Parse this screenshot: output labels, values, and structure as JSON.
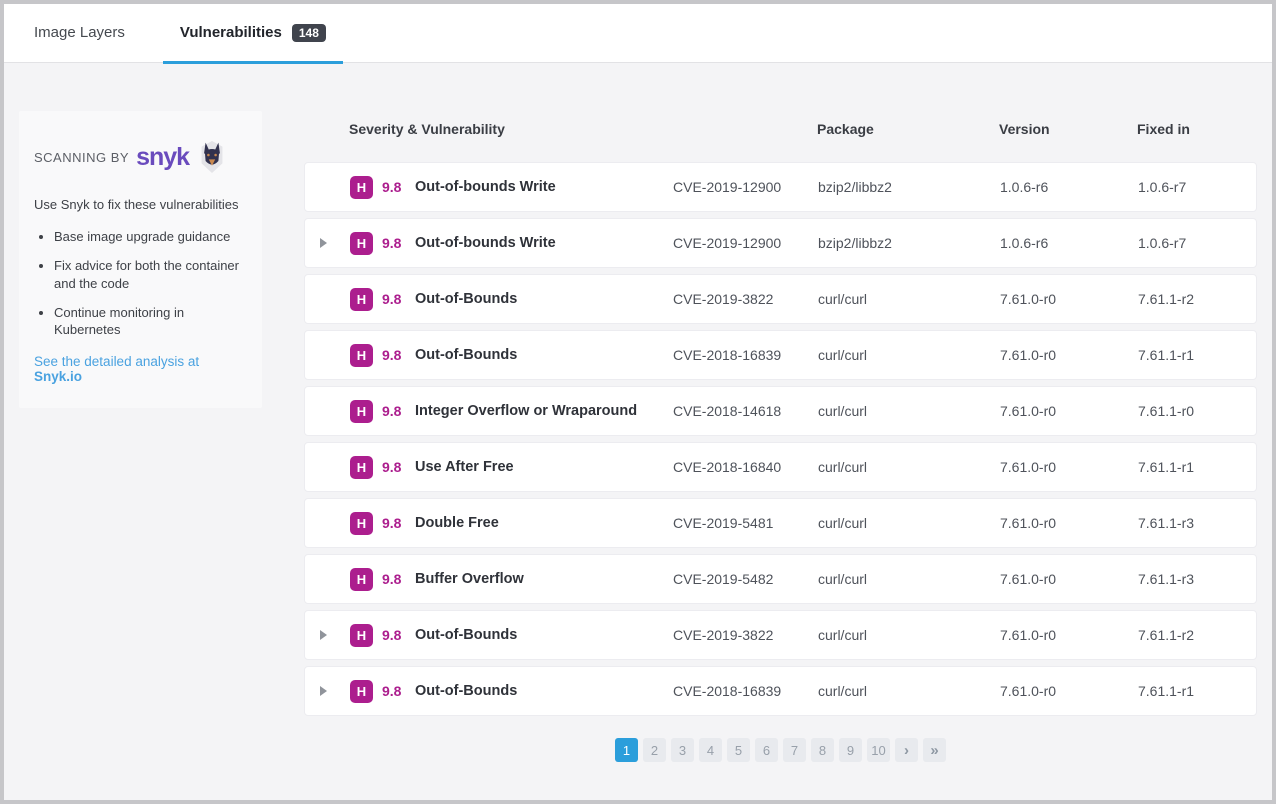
{
  "tabs": [
    {
      "label": "Image Layers",
      "active": false
    },
    {
      "label": "Vulnerabilities",
      "active": true,
      "badge": "148"
    }
  ],
  "sidebar": {
    "scanning_by_label": "SCANNING BY",
    "brand": "snyk",
    "intro": "Use Snyk to fix these vulnerabilities",
    "bullets": [
      "Base image upgrade guidance",
      "Fix advice for both the container and the code",
      "Continue monitoring in Kubernetes"
    ],
    "link_text": "See the detailed analysis at",
    "link_target": "Snyk.io"
  },
  "table": {
    "headers": {
      "severity": "Severity & Vulnerability",
      "package": "Package",
      "version": "Version",
      "fixed_in": "Fixed in"
    },
    "rows": [
      {
        "expandable": false,
        "severity_letter": "H",
        "score": "9.8",
        "name": "Out-of-bounds Write",
        "cve": "CVE-2019-12900",
        "package": "bzip2/libbz2",
        "version": "1.0.6-r6",
        "fixed_in": "1.0.6-r7"
      },
      {
        "expandable": true,
        "severity_letter": "H",
        "score": "9.8",
        "name": "Out-of-bounds Write",
        "cve": "CVE-2019-12900",
        "package": "bzip2/libbz2",
        "version": "1.0.6-r6",
        "fixed_in": "1.0.6-r7"
      },
      {
        "expandable": false,
        "severity_letter": "H",
        "score": "9.8",
        "name": "Out-of-Bounds",
        "cve": "CVE-2019-3822",
        "package": "curl/curl",
        "version": "7.61.0-r0",
        "fixed_in": "7.61.1-r2"
      },
      {
        "expandable": false,
        "severity_letter": "H",
        "score": "9.8",
        "name": "Out-of-Bounds",
        "cve": "CVE-2018-16839",
        "package": "curl/curl",
        "version": "7.61.0-r0",
        "fixed_in": "7.61.1-r1"
      },
      {
        "expandable": false,
        "severity_letter": "H",
        "score": "9.8",
        "name": "Integer Overflow or Wraparound",
        "cve": "CVE-2018-14618",
        "package": "curl/curl",
        "version": "7.61.0-r0",
        "fixed_in": "7.61.1-r0"
      },
      {
        "expandable": false,
        "severity_letter": "H",
        "score": "9.8",
        "name": "Use After Free",
        "cve": "CVE-2018-16840",
        "package": "curl/curl",
        "version": "7.61.0-r0",
        "fixed_in": "7.61.1-r1"
      },
      {
        "expandable": false,
        "severity_letter": "H",
        "score": "9.8",
        "name": "Double Free",
        "cve": "CVE-2019-5481",
        "package": "curl/curl",
        "version": "7.61.0-r0",
        "fixed_in": "7.61.1-r3"
      },
      {
        "expandable": false,
        "severity_letter": "H",
        "score": "9.8",
        "name": "Buffer Overflow",
        "cve": "CVE-2019-5482",
        "package": "curl/curl",
        "version": "7.61.0-r0",
        "fixed_in": "7.61.1-r3"
      },
      {
        "expandable": true,
        "severity_letter": "H",
        "score": "9.8",
        "name": "Out-of-Bounds",
        "cve": "CVE-2019-3822",
        "package": "curl/curl",
        "version": "7.61.0-r0",
        "fixed_in": "7.61.1-r2"
      },
      {
        "expandable": true,
        "severity_letter": "H",
        "score": "9.8",
        "name": "Out-of-Bounds",
        "cve": "CVE-2018-16839",
        "package": "curl/curl",
        "version": "7.61.0-r0",
        "fixed_in": "7.61.1-r1"
      }
    ]
  },
  "pagination": {
    "pages": [
      "1",
      "2",
      "3",
      "4",
      "5",
      "6",
      "7",
      "8",
      "9",
      "10"
    ],
    "active_page": "1",
    "next_label": "›",
    "last_label": "»"
  },
  "colors": {
    "accent_blue": "#2b9edb",
    "severity_high_bg": "#ac1e8e",
    "count_badge_bg": "#40444d",
    "link_blue": "#4aa2e0",
    "snyk_purple": "#6a4bbd"
  }
}
